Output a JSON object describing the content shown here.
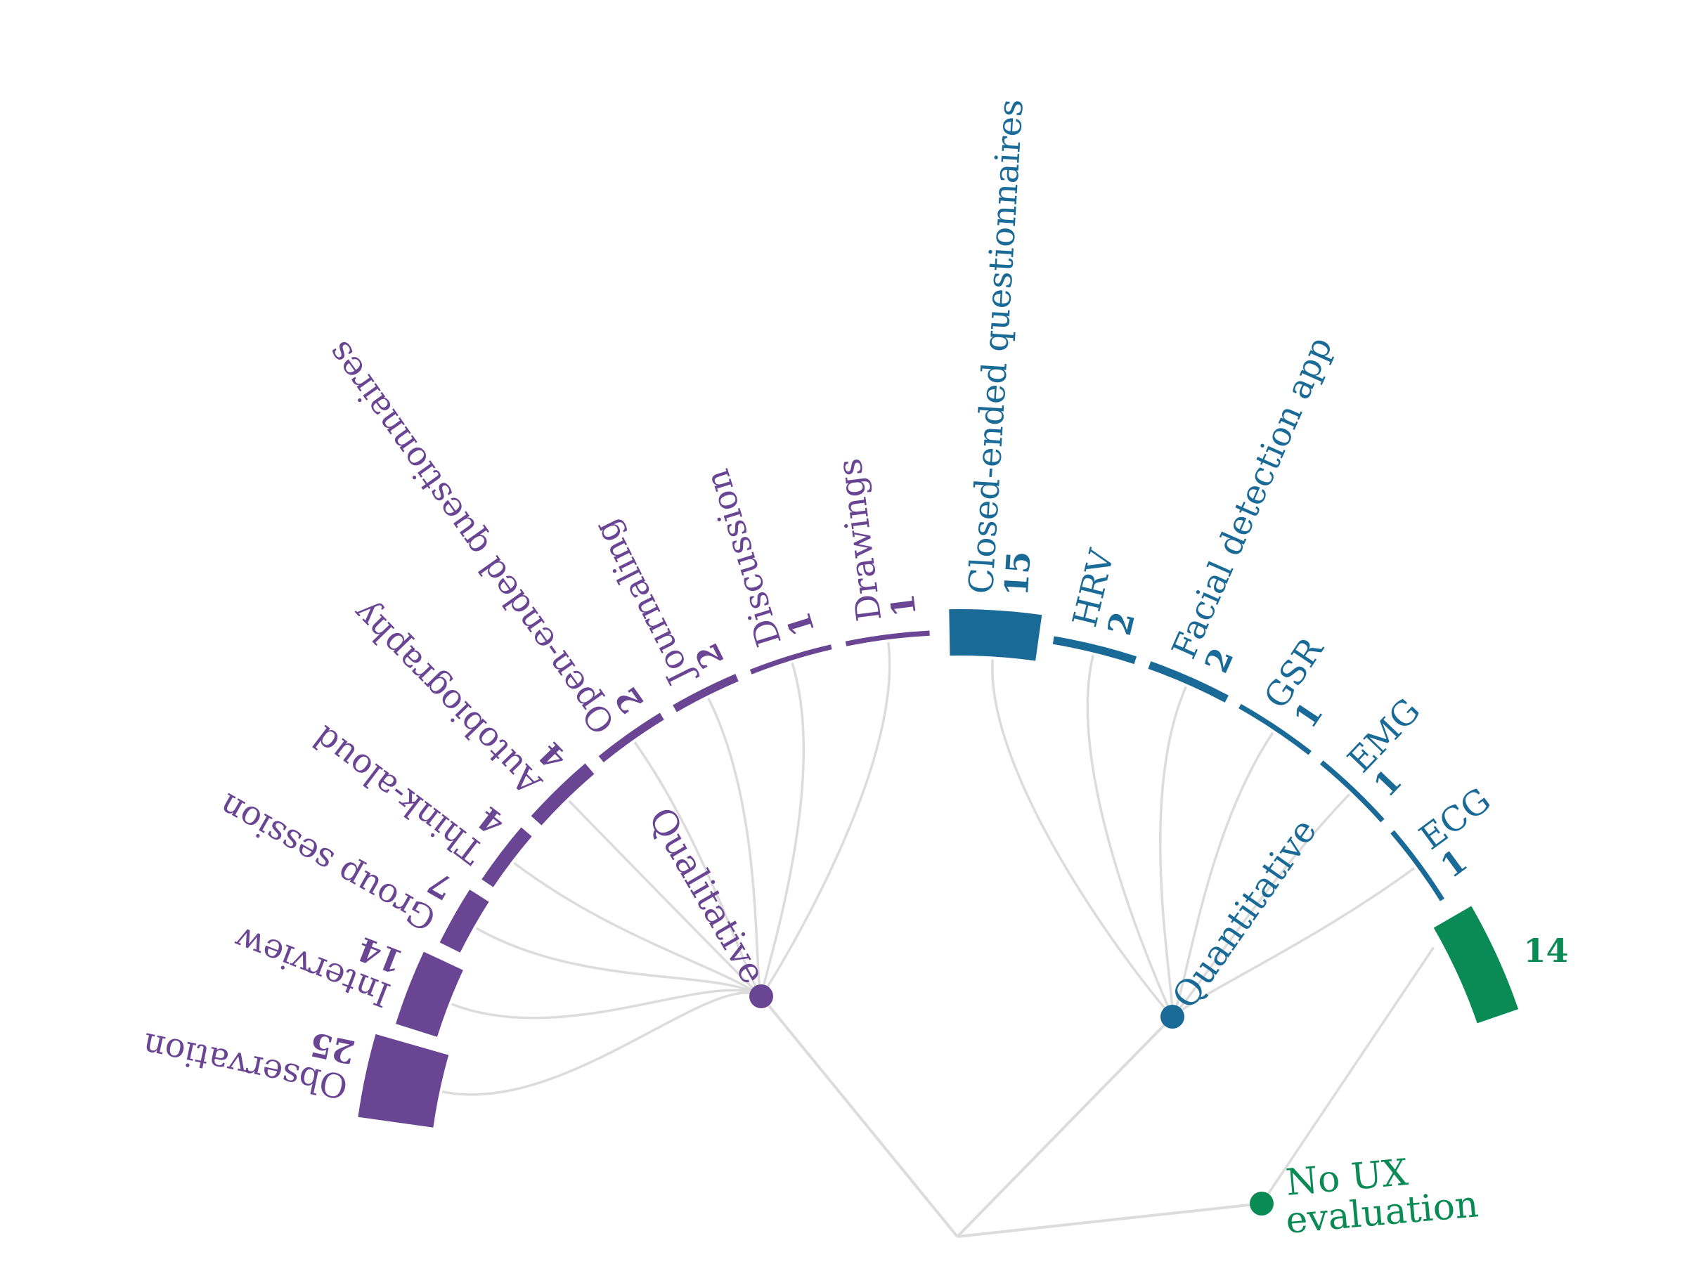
{
  "groups": [
    {
      "id": "qualitative",
      "label": "Qualitative",
      "color": "#6a4593"
    },
    {
      "id": "quantitative",
      "label": "Quantitative",
      "color": "#1a6a97"
    },
    {
      "id": "none",
      "label_lines": [
        "No UX",
        "evaluation"
      ],
      "color": "#0a8a55"
    }
  ],
  "methods": [
    {
      "label": "Observation",
      "count": "25",
      "group": "qualitative"
    },
    {
      "label": "Interview",
      "count": "14",
      "group": "qualitative"
    },
    {
      "label": "Group session",
      "count": "7",
      "group": "qualitative"
    },
    {
      "label": "Think-aloud",
      "count": "4",
      "group": "qualitative"
    },
    {
      "label": "Autobiography",
      "count": "4",
      "group": "qualitative"
    },
    {
      "label": "Open-ended questionnaires",
      "count": "2",
      "group": "qualitative"
    },
    {
      "label": "Journaling",
      "count": "2",
      "group": "qualitative"
    },
    {
      "label": "Discussion",
      "count": "1",
      "group": "qualitative"
    },
    {
      "label": "Drawings",
      "count": "1",
      "group": "qualitative"
    },
    {
      "label": "Closed-ended questionnaires",
      "count": "15",
      "group": "quantitative"
    },
    {
      "label": "HRV",
      "count": "2",
      "group": "quantitative"
    },
    {
      "label": "Facial detection app",
      "count": "2",
      "group": "quantitative"
    },
    {
      "label": "GSR",
      "count": "1",
      "group": "quantitative"
    },
    {
      "label": "EMG",
      "count": "1",
      "group": "quantitative"
    },
    {
      "label": "ECG",
      "count": "1",
      "group": "quantitative"
    },
    {
      "label": "",
      "count": "14",
      "group": "none"
    }
  ]
}
